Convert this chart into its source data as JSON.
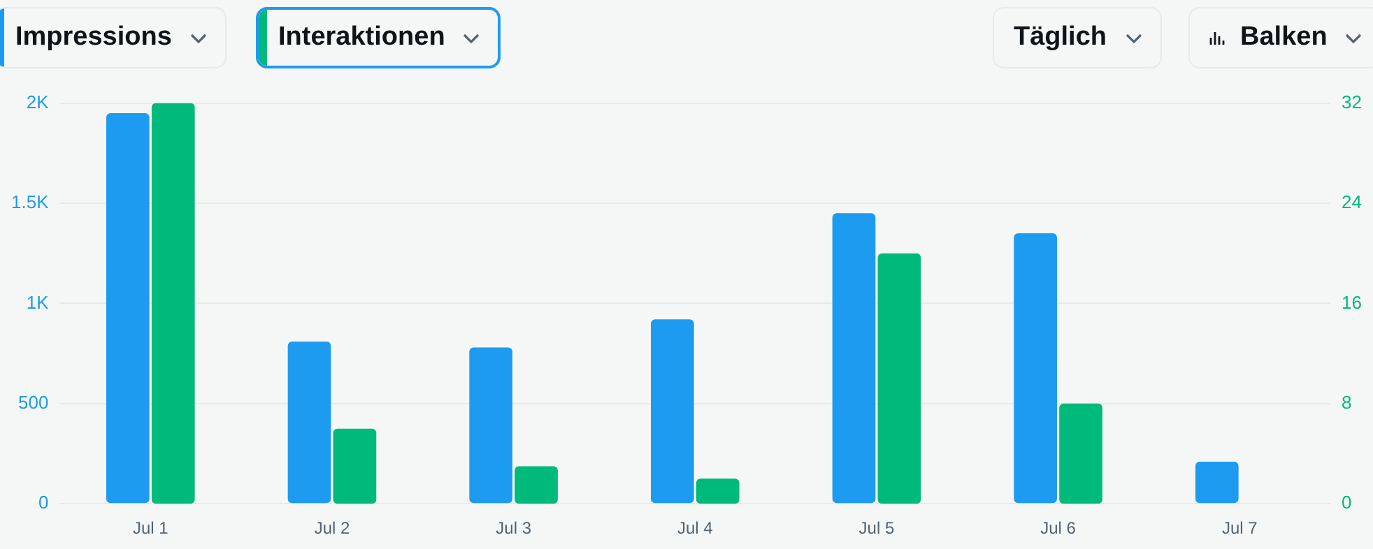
{
  "chart_data": {
    "type": "bar",
    "categories": [
      "Jul 1",
      "Jul 2",
      "Jul 3",
      "Jul 4",
      "Jul 5",
      "Jul 6",
      "Jul 7"
    ],
    "series": [
      {
        "name": "Impressions",
        "color": "#1d9bf0",
        "values": [
          1950,
          810,
          780,
          920,
          1450,
          1350,
          210
        ]
      },
      {
        "name": "Interaktionen",
        "color": "#00ba7c",
        "axis": "y2",
        "values": [
          32,
          6,
          3,
          2,
          20,
          8,
          0
        ]
      }
    ],
    "ylim": [
      0,
      2000
    ],
    "yticks": [
      0,
      500,
      {
        "value": 1000,
        "label": "1K"
      },
      {
        "value": 1500,
        "label": "1.5K"
      },
      {
        "value": 2000,
        "label": "2K"
      }
    ],
    "y2lim": [
      0,
      32
    ],
    "y2ticks": [
      0,
      8,
      16,
      24,
      32
    ],
    "grid": "y",
    "legend": "top left",
    "annotations": [
      "Täglich",
      "Balken"
    ]
  }
}
